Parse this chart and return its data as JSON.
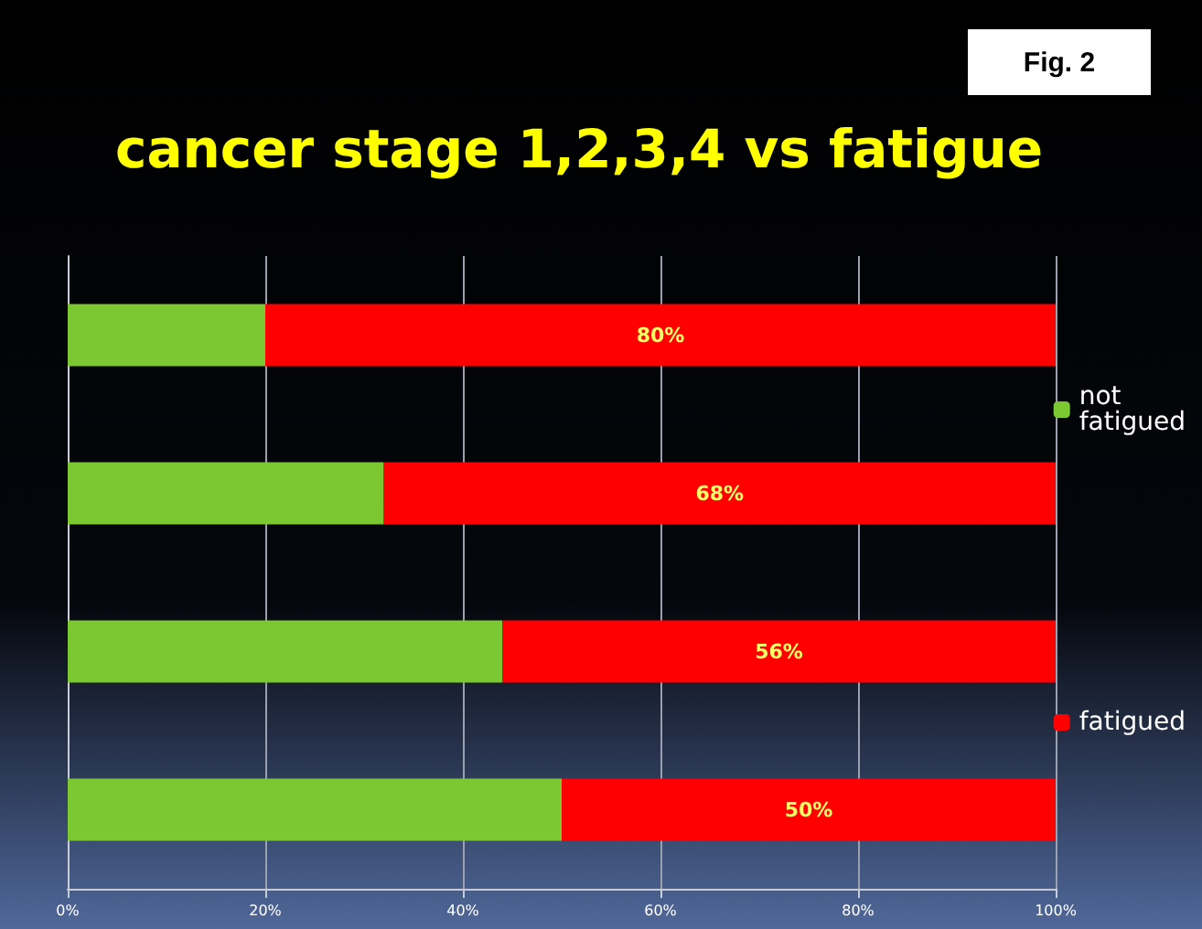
{
  "chart_data": {
    "type": "bar",
    "title": "cancer stage 1,2,3,4 vs fatigue",
    "orientation": "horizontal",
    "stacked": true,
    "categories": [
      null,
      null,
      null,
      null
    ],
    "series": [
      {
        "name": "not fatigued",
        "color": "#7cc832",
        "values": [
          20,
          32,
          44,
          50
        ]
      },
      {
        "name": "fatigued",
        "color": "#ff0000",
        "values": [
          80,
          68,
          56,
          50
        ],
        "value_labels": [
          "80%",
          "68%",
          "56%",
          "50%"
        ]
      }
    ],
    "xlim": [
      0,
      100
    ],
    "xticks": [
      {
        "value": 0,
        "label": "0%"
      },
      {
        "value": 20,
        "label": "20%"
      },
      {
        "value": 40,
        "label": "40%"
      },
      {
        "value": 60,
        "label": "60%"
      },
      {
        "value": 80,
        "label": "80%"
      },
      {
        "value": 100,
        "label": "100%"
      }
    ],
    "grid": "x",
    "legend": "right",
    "annotations": [
      "Fig. 2"
    ]
  }
}
